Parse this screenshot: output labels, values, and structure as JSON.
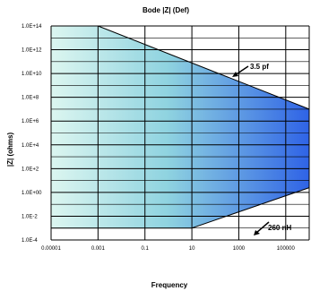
{
  "chart_data": {
    "type": "area",
    "title": "Bode |Z| (Def)",
    "xlabel": "Frequency",
    "ylabel": "|Z| (ohms)",
    "x_scale": "log",
    "y_scale": "log",
    "xlim": [
      1e-05,
      1000000
    ],
    "ylim": [
      0.0001,
      100000000000000
    ],
    "x_ticks": [
      "0.00001",
      "0.001",
      "0.1",
      "10",
      "1000",
      "100000"
    ],
    "x_tick_values": [
      1e-05,
      0.001,
      0.1,
      10,
      1000,
      100000
    ],
    "y_ticks": [
      "1.0E+14",
      "1.0E+12",
      "1.0E+10",
      "1.0E+8",
      "1.0E+6",
      "1.0E+4",
      "1.0E+2",
      "1.0E+00",
      "1.0E-2",
      "1.0E-4"
    ],
    "y_tick_values": [
      100000000000000,
      1000000000000,
      10000000000,
      100000000,
      1000000,
      10000,
      100,
      1,
      0.01,
      0.0001
    ],
    "grid": true,
    "series": [
      {
        "name": "3.5 pf",
        "x": [
          1e-05,
          0.001,
          1000000
        ],
        "y": [
          100000000000000,
          100000000000000,
          10000000
        ]
      },
      {
        "name": "260 nH",
        "x": [
          1e-05,
          10,
          1000000
        ],
        "y": [
          0.001,
          0.001,
          2.5
        ]
      }
    ],
    "annotations": [
      {
        "text": "3.5 pf"
      },
      {
        "text": "260 nH"
      }
    ],
    "colors": {
      "fill_left": "#dcf6f0",
      "fill_right": "#2f63e6",
      "grid": "#000000"
    }
  }
}
